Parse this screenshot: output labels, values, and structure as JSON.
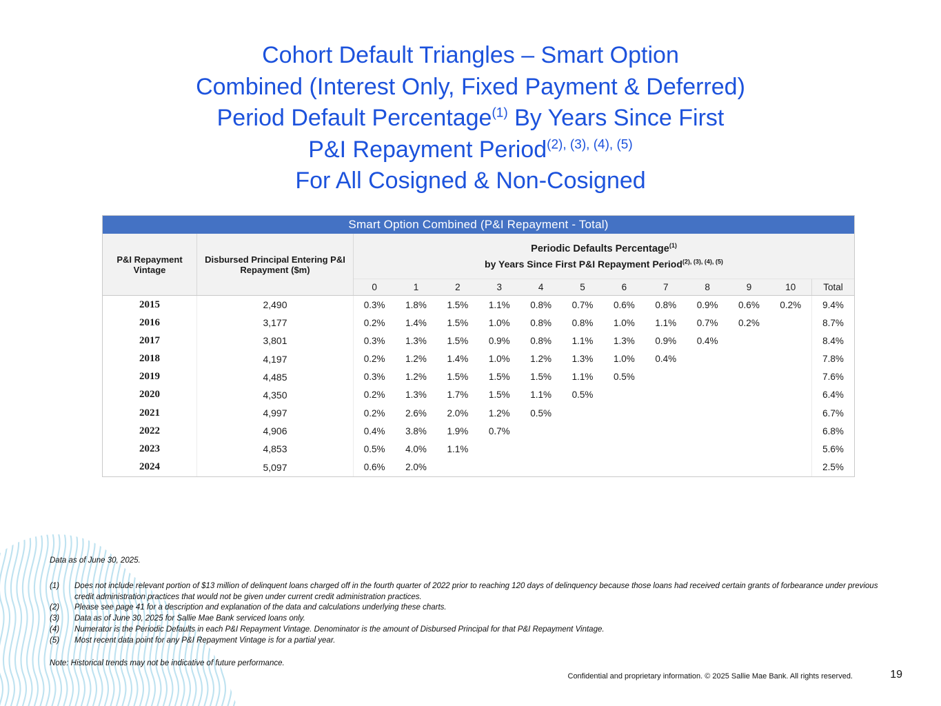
{
  "colors": {
    "title_blue": "#1c52dc",
    "table_bar_blue": "#4472c4",
    "header_gray": "#f2f2f2",
    "wave_blue": "#b3ddee"
  },
  "title": {
    "line1": "Cohort Default Triangles – Smart Option",
    "line2": "Combined (Interest Only, Fixed Payment & Deferred)",
    "line3_pre": "Period Default Percentage",
    "line3_sup": "(1)",
    "line3_post": " By Years Since First",
    "line4_pre": "P&I Repayment Period",
    "line4_sup": "(2), (3), (4), (5)",
    "line5": "For All Cosigned & Non-Cosigned"
  },
  "table": {
    "title": "Smart Option Combined (P&I Repayment - Total)",
    "col1_header": "P&I Repayment Vintage",
    "col2_header": "Disbursed Principal Entering P&I Repayment ($m)",
    "defaults_header_line1_pre": "Periodic Defaults Percentage",
    "defaults_header_line1_sup": "(1)",
    "defaults_header_line2_pre": "by Years Since First P&I Repayment Period",
    "defaults_header_line2_sup": "(2), (3), (4), (5)",
    "year_columns": [
      "0",
      "1",
      "2",
      "3",
      "4",
      "5",
      "6",
      "7",
      "8",
      "9",
      "10"
    ],
    "total_header": "Total",
    "rows": [
      {
        "vintage": "2015",
        "principal": "2,490",
        "values": [
          "0.3%",
          "1.8%",
          "1.5%",
          "1.1%",
          "0.8%",
          "0.7%",
          "0.6%",
          "0.8%",
          "0.9%",
          "0.6%",
          "0.2%"
        ],
        "total": "9.4%"
      },
      {
        "vintage": "2016",
        "principal": "3,177",
        "values": [
          "0.2%",
          "1.4%",
          "1.5%",
          "1.0%",
          "0.8%",
          "0.8%",
          "1.0%",
          "1.1%",
          "0.7%",
          "0.2%",
          ""
        ],
        "total": "8.7%"
      },
      {
        "vintage": "2017",
        "principal": "3,801",
        "values": [
          "0.3%",
          "1.3%",
          "1.5%",
          "0.9%",
          "0.8%",
          "1.1%",
          "1.3%",
          "0.9%",
          "0.4%",
          "",
          ""
        ],
        "total": "8.4%"
      },
      {
        "vintage": "2018",
        "principal": "4,197",
        "values": [
          "0.2%",
          "1.2%",
          "1.4%",
          "1.0%",
          "1.2%",
          "1.3%",
          "1.0%",
          "0.4%",
          "",
          "",
          ""
        ],
        "total": "7.8%"
      },
      {
        "vintage": "2019",
        "principal": "4,485",
        "values": [
          "0.3%",
          "1.2%",
          "1.5%",
          "1.5%",
          "1.5%",
          "1.1%",
          "0.5%",
          "",
          "",
          "",
          ""
        ],
        "total": "7.6%"
      },
      {
        "vintage": "2020",
        "principal": "4,350",
        "values": [
          "0.2%",
          "1.3%",
          "1.7%",
          "1.5%",
          "1.1%",
          "0.5%",
          "",
          "",
          "",
          "",
          ""
        ],
        "total": "6.4%"
      },
      {
        "vintage": "2021",
        "principal": "4,997",
        "values": [
          "0.2%",
          "2.6%",
          "2.0%",
          "1.2%",
          "0.5%",
          "",
          "",
          "",
          "",
          "",
          ""
        ],
        "total": "6.7%"
      },
      {
        "vintage": "2022",
        "principal": "4,906",
        "values": [
          "0.4%",
          "3.8%",
          "1.9%",
          "0.7%",
          "",
          "",
          "",
          "",
          "",
          "",
          ""
        ],
        "total": "6.8%"
      },
      {
        "vintage": "2023",
        "principal": "4,853",
        "values": [
          "0.5%",
          "4.0%",
          "1.1%",
          "",
          "",
          "",
          "",
          "",
          "",
          "",
          ""
        ],
        "total": "5.6%"
      },
      {
        "vintage": "2024",
        "principal": "5,097",
        "values": [
          "0.6%",
          "2.0%",
          "",
          "",
          "",
          "",
          "",
          "",
          "",
          "",
          ""
        ],
        "total": "2.5%"
      }
    ]
  },
  "footnotes": {
    "data_as_of": "Data as of June 30, 2025.",
    "items": [
      {
        "num": "(1)",
        "text": "Does not include relevant portion of $13 million of delinquent loans charged off in the fourth quarter of 2022 prior to reaching 120 days of delinquency because those loans had received certain grants of forbearance under previous credit administration practices that would not be given under current credit administration practices."
      },
      {
        "num": "(2)",
        "text": "Please see page 41 for a description and explanation of the data and calculations underlying these charts."
      },
      {
        "num": "(3)",
        "text": "Data as of June 30, 2025 for Sallie Mae Bank serviced loans only."
      },
      {
        "num": "(4)",
        "text": "Numerator is the Periodic Defaults in each P&I Repayment Vintage. Denominator is the amount of Disbursed Principal for that P&I Repayment Vintage."
      },
      {
        "num": "(5)",
        "text": "Most recent data point for any P&I Repayment Vintage is for a partial year."
      }
    ],
    "note": "Note: Historical trends may not be indicative of future performance."
  },
  "footer": {
    "confidential": "Confidential and proprietary information. © 2025 Sallie Mae Bank. All rights reserved.",
    "page_number": "19"
  }
}
